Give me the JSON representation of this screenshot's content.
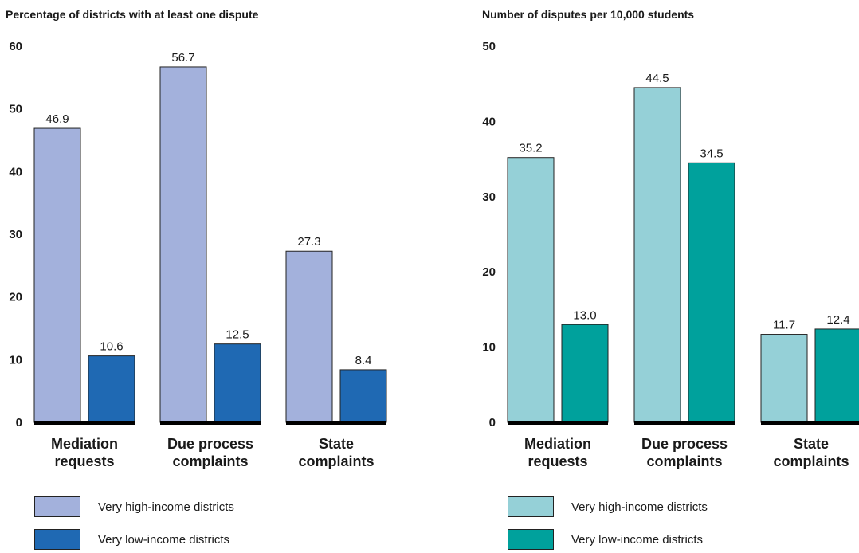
{
  "chart_data": [
    {
      "type": "bar",
      "title": "Percentage of districts with at least one dispute",
      "categories": [
        [
          "Mediation",
          "requests"
        ],
        [
          "Due process",
          "complaints"
        ],
        [
          "State",
          "complaints"
        ]
      ],
      "series": [
        {
          "name": "Very high-income districts",
          "color": "#a3b1dc",
          "values": [
            46.9,
            56.7,
            27.3
          ]
        },
        {
          "name": "Very low-income districts",
          "color": "#1f69b3",
          "values": [
            10.6,
            12.5,
            8.4
          ]
        }
      ],
      "value_labels": [
        [
          "46.9",
          "56.7",
          "27.3"
        ],
        [
          "10.6",
          "12.5",
          "8.4"
        ]
      ],
      "ylim": [
        0,
        60
      ],
      "yticks": [
        0,
        10,
        20,
        30,
        40,
        50,
        60
      ],
      "grid": false,
      "legend_position": "bottom-left"
    },
    {
      "type": "bar",
      "title": "Number of disputes per 10,000 students",
      "categories": [
        [
          "Mediation",
          "requests"
        ],
        [
          "Due process",
          "complaints"
        ],
        [
          "State",
          "complaints"
        ]
      ],
      "series": [
        {
          "name": "Very high-income districts",
          "color": "#95d0d7",
          "values": [
            35.2,
            44.5,
            11.7
          ]
        },
        {
          "name": "Very low-income districts",
          "color": "#00a19c",
          "values": [
            13.0,
            34.5,
            12.4
          ]
        }
      ],
      "value_labels": [
        [
          "35.2",
          "44.5",
          "11.7"
        ],
        [
          "13.0",
          "34.5",
          "12.4"
        ]
      ],
      "ylim": [
        0,
        50
      ],
      "yticks": [
        0,
        10,
        20,
        30,
        40,
        50
      ],
      "grid": false,
      "legend_position": "bottom-left"
    }
  ]
}
